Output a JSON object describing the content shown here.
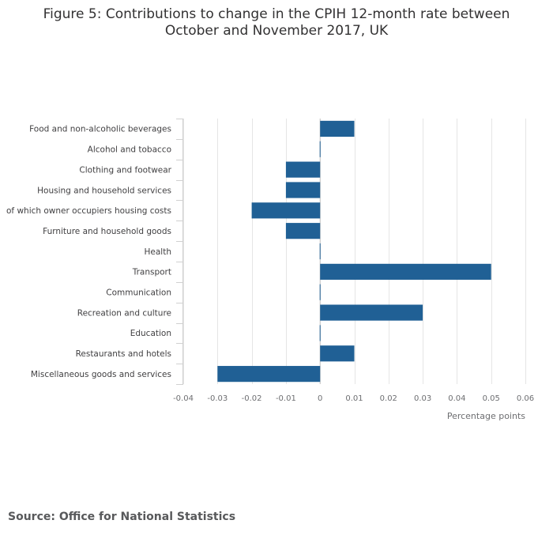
{
  "chart_data": {
    "type": "bar",
    "orientation": "horizontal",
    "title_line1": "Figure 5: Contributions to change in the CPIH 12-month rate between",
    "title_line2": "October and November 2017, UK",
    "categories": [
      "Food and non-alcoholic beverages",
      "Alcohol and tobacco",
      "Clothing and footwear",
      "Housing and household services",
      "of which owner occupiers housing costs",
      "Furniture and household goods",
      "Health",
      "Transport",
      "Communication",
      "Recreation and culture",
      "Education",
      "Restaurants and hotels",
      "Miscellaneous goods and services"
    ],
    "values": [
      0.01,
      0.0,
      -0.01,
      -0.01,
      -0.02,
      -0.01,
      0.0,
      0.05,
      0.0,
      0.03,
      0.0,
      0.01,
      -0.03
    ],
    "xlabel": "Percentage points",
    "ylabel": "",
    "xlim": [
      -0.04,
      0.06
    ],
    "xticks": [
      -0.04,
      -0.03,
      -0.02,
      -0.01,
      0,
      0.01,
      0.02,
      0.03,
      0.04,
      0.05,
      0.06
    ],
    "xtick_labels": [
      "-0.04",
      "-0.03",
      "-0.02",
      "-0.01",
      "0",
      "0.01",
      "0.02",
      "0.03",
      "0.04",
      "0.05",
      "0.06"
    ],
    "grid": true,
    "bar_color": "#206095"
  },
  "source": "Source: Office for National Statistics"
}
